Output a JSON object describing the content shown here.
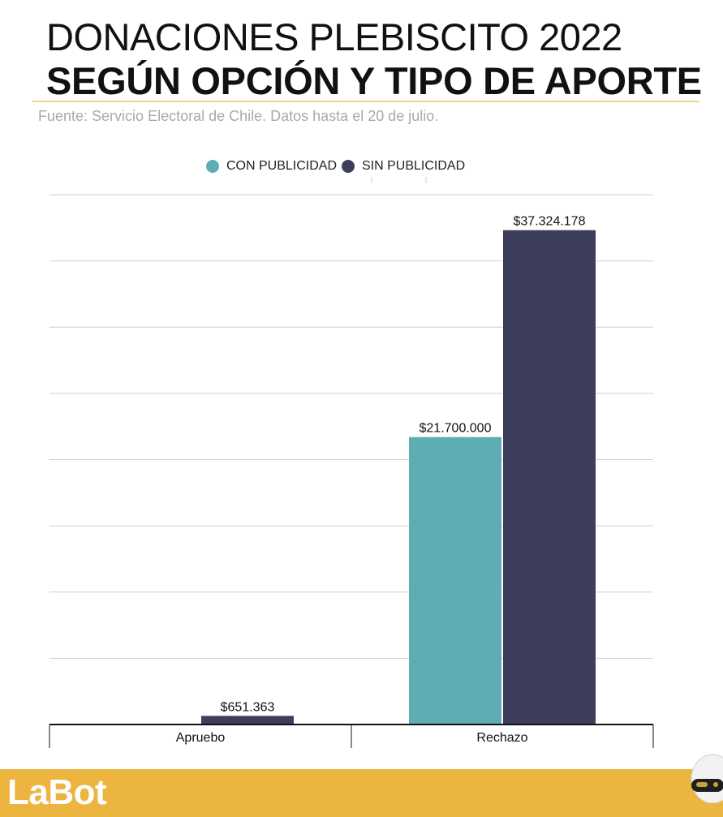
{
  "header": {
    "title_line1": "DONACIONES PLEBISCITO 2022",
    "title_line2": "SEGÚN OPCIÓN Y TIPO DE APORTE",
    "source": "Fuente: Servicio Electoral de Chile. Datos hasta el 20 de julio."
  },
  "footer": {
    "brand": "LaBot",
    "logo_icon": "robot-head-icon"
  },
  "colors": {
    "con": "#5eacb4",
    "sin": "#3d3d5c",
    "accent": "#ebb540"
  },
  "chart_data": {
    "type": "bar",
    "categories": [
      "Apruebo",
      "Rechazo"
    ],
    "series": [
      {
        "name": "CON PUBLICIDAD",
        "values": [
          0,
          21700000
        ],
        "labels": [
          "",
          "$21.700.000"
        ]
      },
      {
        "name": "SIN PUBLICIDAD",
        "values": [
          651363,
          37324178
        ],
        "labels": [
          "$651.363",
          "$37.324.178"
        ]
      }
    ],
    "title": "",
    "xlabel": "",
    "ylabel": "",
    "ylim": [
      0,
      40000000
    ],
    "grid": true,
    "legend": "top-center"
  }
}
